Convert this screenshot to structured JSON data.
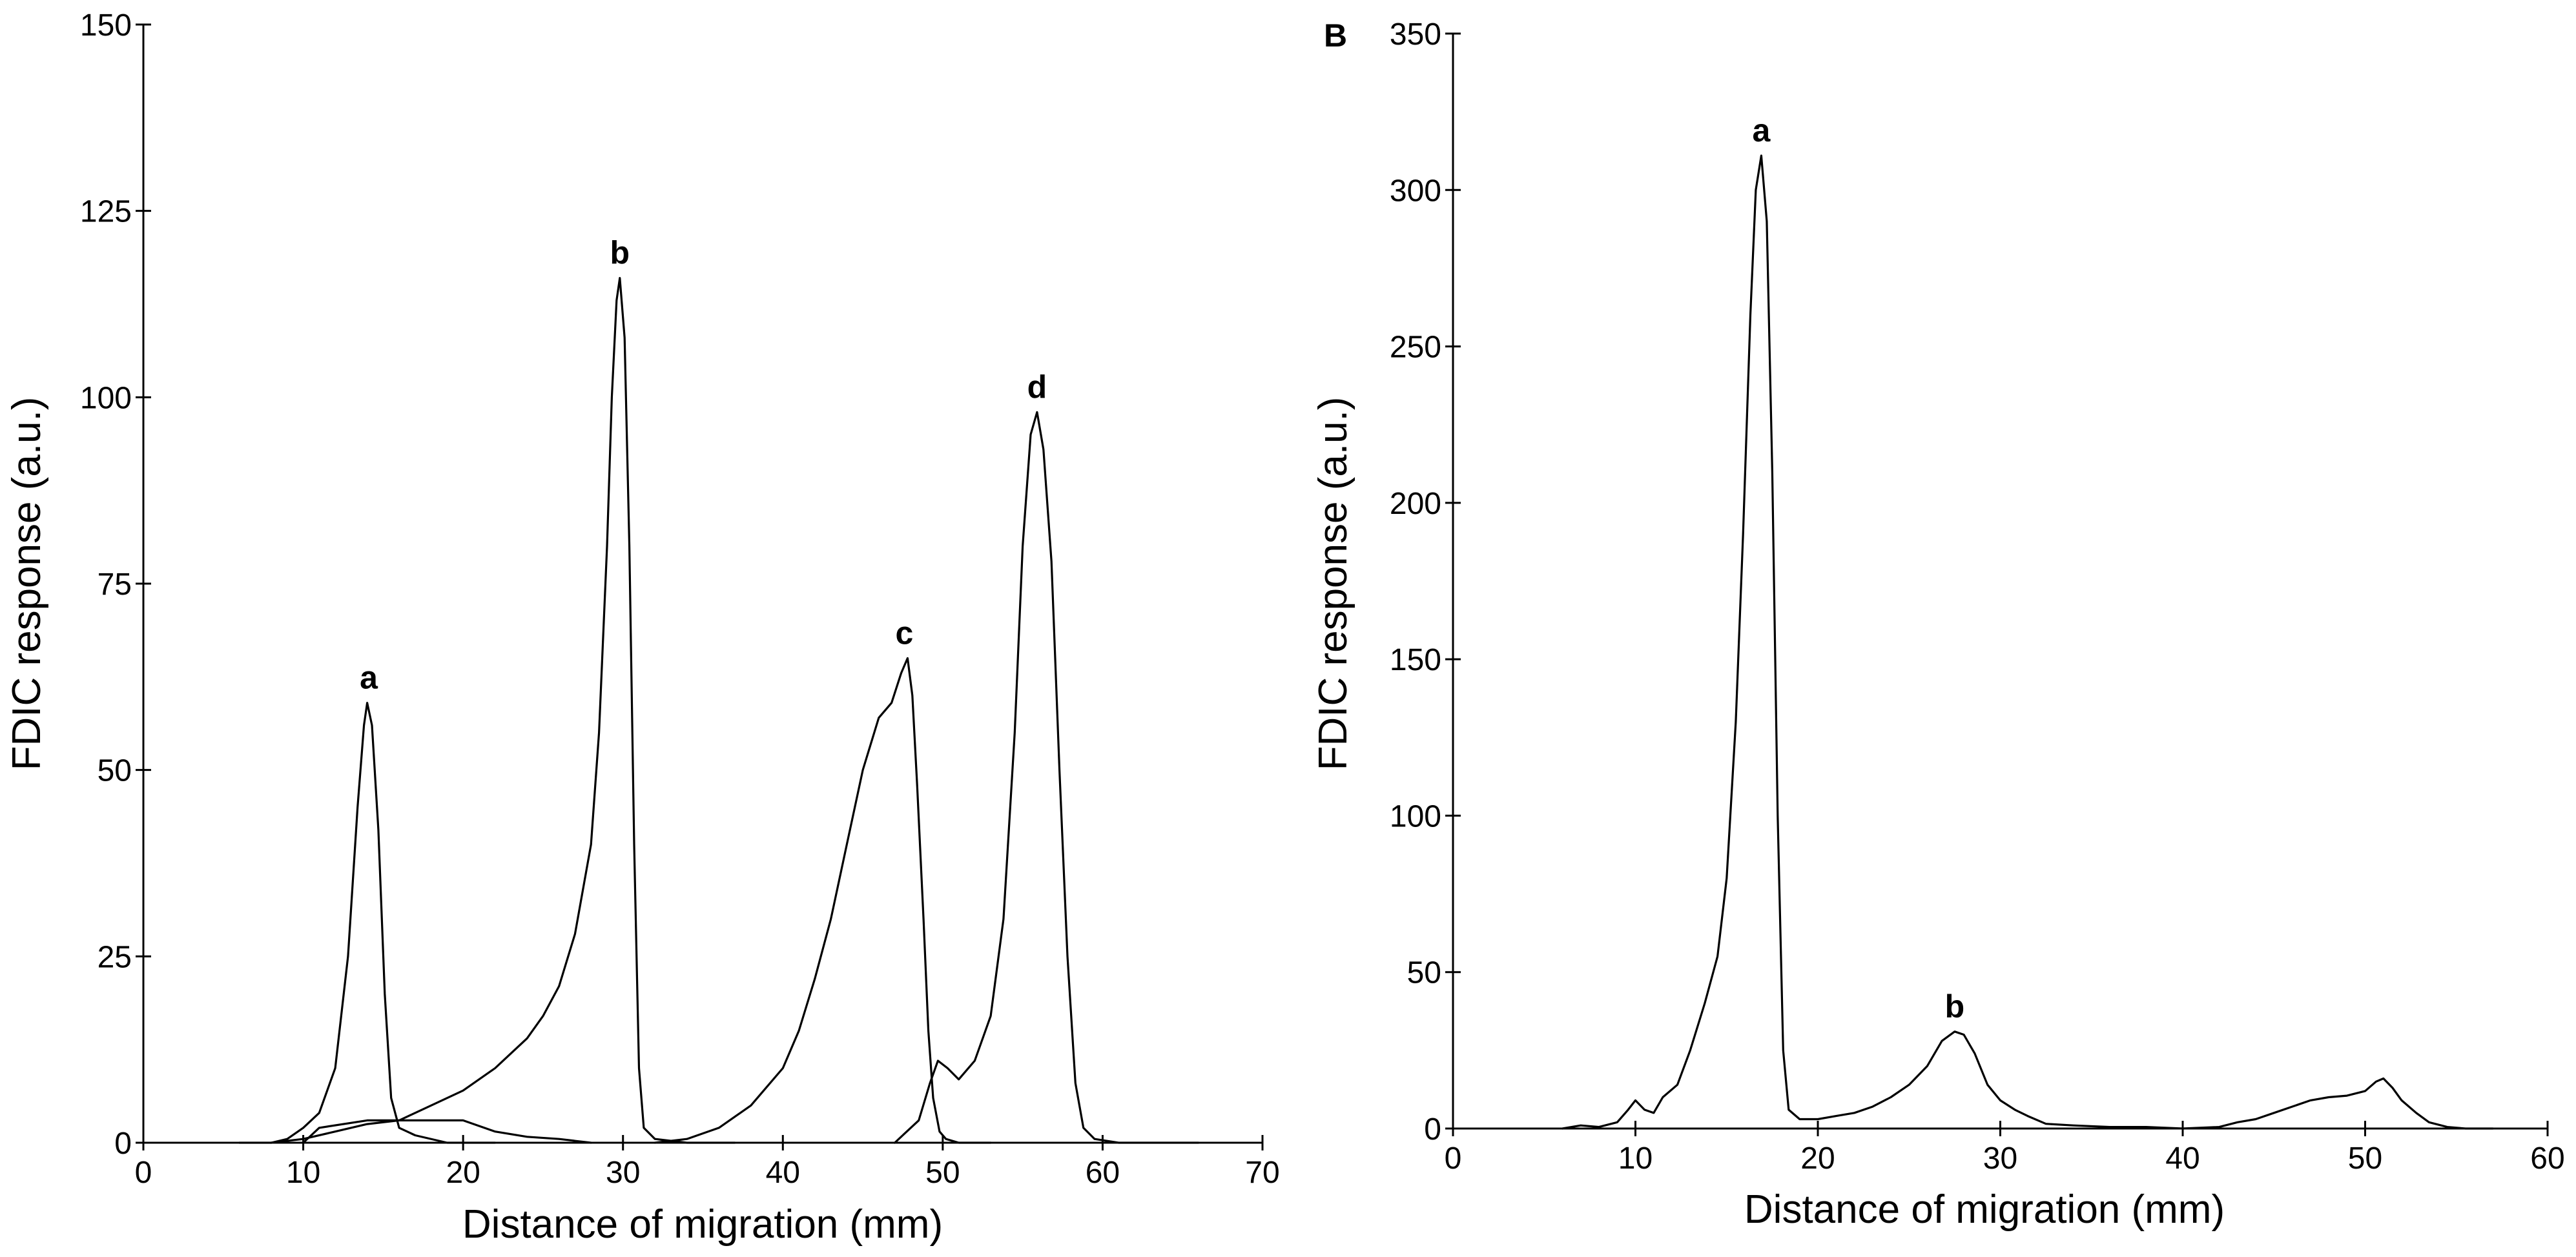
{
  "chart_data": [
    {
      "type": "line",
      "panel": "",
      "xlabel": "Distance of migration (mm)",
      "ylabel": "FDIC response (a.u.)",
      "xlim": [
        0,
        70
      ],
      "ylim": [
        0,
        150
      ],
      "xticks": [
        0,
        10,
        20,
        30,
        40,
        50,
        60,
        70
      ],
      "yticks": [
        0,
        25,
        50,
        75,
        100,
        125,
        150
      ],
      "grid": false,
      "series": [
        {
          "values": [
            [
              6,
              0
            ],
            [
              8,
              0
            ],
            [
              9,
              0.5
            ],
            [
              10,
              2
            ],
            [
              11,
              4
            ],
            [
              12,
              10
            ],
            [
              12.8,
              25
            ],
            [
              13.4,
              45
            ],
            [
              13.8,
              56
            ],
            [
              14,
              59
            ],
            [
              14.3,
              56
            ],
            [
              14.7,
              42
            ],
            [
              15.1,
              20
            ],
            [
              15.5,
              6
            ],
            [
              16,
              2
            ],
            [
              17,
              1
            ],
            [
              19,
              0
            ],
            [
              22,
              0
            ]
          ]
        },
        {
          "values": [
            [
              8,
              0
            ],
            [
              10,
              0.5
            ],
            [
              12,
              1.5
            ],
            [
              14,
              2.5
            ],
            [
              16,
              3
            ],
            [
              18,
              5
            ],
            [
              20,
              7
            ],
            [
              22,
              10
            ],
            [
              24,
              14
            ],
            [
              25,
              17
            ],
            [
              26,
              21
            ],
            [
              27,
              28
            ],
            [
              28,
              40
            ],
            [
              28.5,
              55
            ],
            [
              29,
              80
            ],
            [
              29.3,
              100
            ],
            [
              29.6,
              113
            ],
            [
              29.8,
              116
            ],
            [
              30.1,
              108
            ],
            [
              30.4,
              80
            ],
            [
              30.7,
              40
            ],
            [
              31,
              10
            ],
            [
              31.3,
              2
            ],
            [
              32,
              0.5
            ],
            [
              34,
              0
            ],
            [
              37,
              0
            ]
          ]
        },
        {
          "values": [
            [
              10,
              0
            ],
            [
              11,
              2
            ],
            [
              14,
              3
            ],
            [
              17,
              3
            ],
            [
              20,
              3
            ],
            [
              22,
              1.5
            ],
            [
              24,
              0.8
            ],
            [
              26,
              0.5
            ],
            [
              28,
              0
            ]
          ]
        },
        {
          "values": [
            [
              32,
              0
            ],
            [
              34,
              0.5
            ],
            [
              36,
              2
            ],
            [
              38,
              5
            ],
            [
              40,
              10
            ],
            [
              41,
              15
            ],
            [
              42,
              22
            ],
            [
              43,
              30
            ],
            [
              44,
              40
            ],
            [
              45,
              50
            ],
            [
              46,
              57
            ],
            [
              46.8,
              59
            ],
            [
              47.4,
              63
            ],
            [
              47.8,
              65
            ],
            [
              48.1,
              60
            ],
            [
              48.4,
              48
            ],
            [
              48.8,
              30
            ],
            [
              49.1,
              15
            ],
            [
              49.4,
              6
            ],
            [
              49.8,
              1.5
            ],
            [
              50.2,
              0.5
            ],
            [
              51,
              0
            ],
            [
              53,
              0
            ]
          ]
        },
        {
          "values": [
            [
              47,
              0
            ],
            [
              48.5,
              3
            ],
            [
              49.2,
              8
            ],
            [
              49.7,
              11
            ],
            [
              50.3,
              10
            ],
            [
              51,
              8.5
            ],
            [
              52,
              11
            ],
            [
              53,
              17
            ],
            [
              53.8,
              30
            ],
            [
              54.5,
              55
            ],
            [
              55,
              80
            ],
            [
              55.5,
              95
            ],
            [
              55.9,
              98
            ],
            [
              56.3,
              93
            ],
            [
              56.8,
              78
            ],
            [
              57.3,
              50
            ],
            [
              57.8,
              25
            ],
            [
              58.3,
              8
            ],
            [
              58.8,
              2
            ],
            [
              59.5,
              0.5
            ],
            [
              61,
              0
            ],
            [
              66,
              0
            ]
          ]
        }
      ],
      "annotations": [
        {
          "text": "a",
          "x": 14.1,
          "y": 59
        },
        {
          "text": "b",
          "x": 29.8,
          "y": 116
        },
        {
          "text": "c",
          "x": 47.6,
          "y": 65
        },
        {
          "text": "d",
          "x": 55.9,
          "y": 98
        }
      ]
    },
    {
      "type": "line",
      "panel": "B",
      "xlabel": "Distance of migration (mm)",
      "ylabel": "FDIC response (a.u.)",
      "xlim": [
        0,
        60
      ],
      "ylim": [
        0,
        350
      ],
      "xticks": [
        0,
        10,
        20,
        30,
        40,
        50,
        60
      ],
      "yticks": [
        0,
        50,
        100,
        150,
        200,
        250,
        300,
        350
      ],
      "grid": false,
      "series": [
        {
          "values": [
            [
              6,
              0
            ],
            [
              7,
              1
            ],
            [
              8,
              0.5
            ],
            [
              9,
              2
            ],
            [
              9.6,
              6
            ],
            [
              10,
              9
            ],
            [
              10.5,
              6
            ],
            [
              11,
              5
            ],
            [
              11.5,
              10
            ],
            [
              12.3,
              14
            ],
            [
              13,
              25
            ],
            [
              13.8,
              40
            ],
            [
              14.5,
              55
            ],
            [
              15,
              80
            ],
            [
              15.5,
              130
            ],
            [
              15.9,
              190
            ],
            [
              16.3,
              260
            ],
            [
              16.6,
              300
            ],
            [
              16.9,
              311
            ],
            [
              17.2,
              290
            ],
            [
              17.5,
              210
            ],
            [
              17.8,
              100
            ],
            [
              18.1,
              25
            ],
            [
              18.4,
              6
            ],
            [
              19,
              3
            ],
            [
              20,
              3
            ],
            [
              21,
              4
            ],
            [
              22,
              5
            ],
            [
              23,
              7
            ],
            [
              24,
              10
            ],
            [
              25,
              14
            ],
            [
              26,
              20
            ],
            [
              26.8,
              28
            ],
            [
              27.5,
              31
            ],
            [
              28,
              30
            ],
            [
              28.6,
              24
            ],
            [
              29.3,
              14
            ],
            [
              30,
              9
            ],
            [
              30.8,
              6
            ],
            [
              31.5,
              4
            ],
            [
              32.5,
              1.5
            ],
            [
              34,
              1
            ],
            [
              36,
              0.5
            ],
            [
              38,
              0.5
            ],
            [
              40,
              0
            ],
            [
              42,
              0.5
            ],
            [
              43,
              2
            ],
            [
              44,
              3
            ],
            [
              45,
              5
            ],
            [
              46,
              7
            ],
            [
              47,
              9
            ],
            [
              48,
              10
            ],
            [
              49,
              10.5
            ],
            [
              50,
              12
            ],
            [
              50.6,
              15
            ],
            [
              51,
              16
            ],
            [
              51.5,
              13
            ],
            [
              52,
              9
            ],
            [
              52.8,
              5
            ],
            [
              53.5,
              2
            ],
            [
              54.5,
              0.5
            ],
            [
              55.5,
              0
            ],
            [
              57,
              0
            ]
          ]
        }
      ],
      "annotations": [
        {
          "text": "a",
          "x": 16.9,
          "y": 311
        },
        {
          "text": "b",
          "x": 27.5,
          "y": 31
        }
      ]
    }
  ]
}
